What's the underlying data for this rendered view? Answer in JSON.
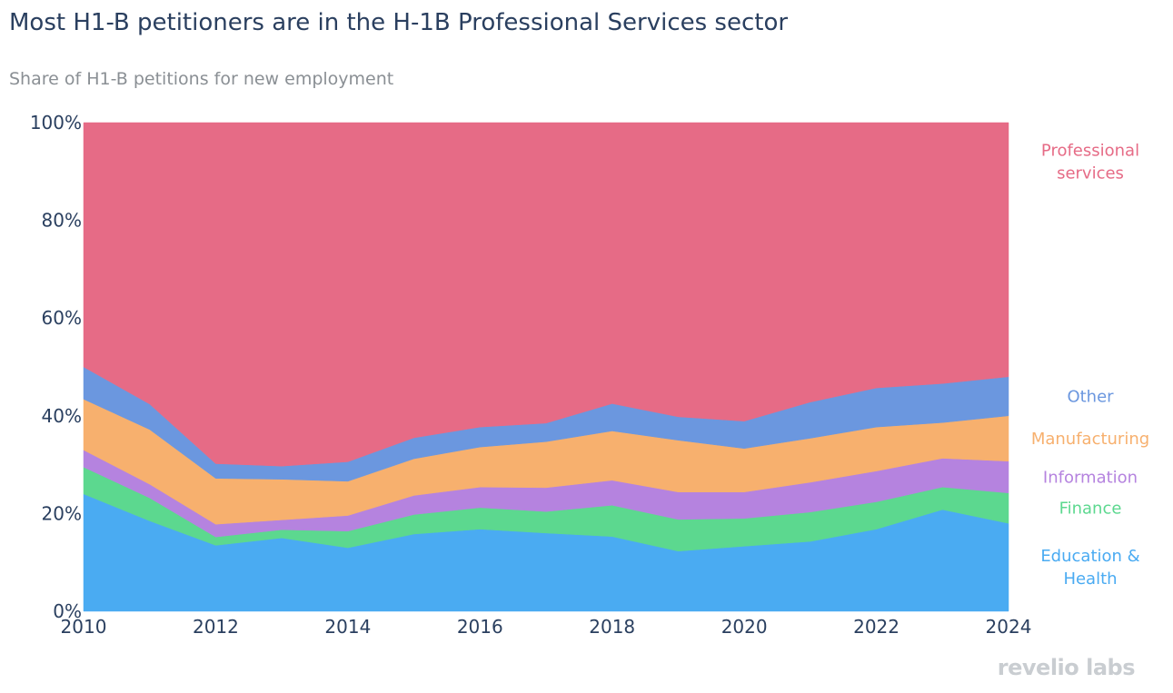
{
  "header": {
    "title": "Most H1-B petitioners are in the H-1B Professional Services sector",
    "subtitle": "Share of H1-B petitions for new employment"
  },
  "logo": {
    "text": "revelio labs"
  },
  "chart_data": {
    "type": "area",
    "stacked": true,
    "normalized": true,
    "x": [
      2010,
      2011,
      2012,
      2013,
      2014,
      2015,
      2016,
      2017,
      2018,
      2019,
      2020,
      2021,
      2022,
      2023,
      2024
    ],
    "xticks": [
      2010,
      2012,
      2014,
      2016,
      2018,
      2020,
      2022,
      2024
    ],
    "xlim": [
      2010,
      2024
    ],
    "ylim": [
      0,
      100
    ],
    "yticks": [
      0,
      20,
      40,
      60,
      80,
      100
    ],
    "ytick_labels": [
      "0%",
      "20%",
      "40%",
      "60%",
      "80%",
      "100%"
    ],
    "grid": false,
    "legend": "labels at right end of series",
    "series": [
      {
        "name": "Education & Health",
        "label_lines": [
          "Education &",
          "Health"
        ],
        "color": "#4aabf2",
        "values": [
          24,
          18.5,
          13.5,
          15,
          13,
          15.8,
          16.8,
          16,
          15.3,
          12.3,
          13.3,
          14.3,
          16.8,
          20.8,
          18
        ]
      },
      {
        "name": "Finance",
        "label_lines": [
          "Finance"
        ],
        "color": "#5cd88f",
        "values": [
          5.5,
          4.7,
          1.7,
          1.7,
          3.4,
          4,
          4.4,
          4.4,
          6.4,
          6.5,
          5.7,
          6,
          5.6,
          4.6,
          6.2
        ]
      },
      {
        "name": "Information",
        "label_lines": [
          "Information"
        ],
        "color": "#b583df",
        "values": [
          3.5,
          2.8,
          2.6,
          2,
          3.2,
          3.9,
          4.2,
          4.9,
          5.1,
          5.6,
          5.4,
          6.1,
          6.3,
          5.9,
          6.5
        ]
      },
      {
        "name": "Manufacturing",
        "label_lines": [
          "Manufacturing"
        ],
        "color": "#f7b06e",
        "values": [
          10.4,
          11.2,
          9.4,
          8.3,
          7,
          7.5,
          8.2,
          9.4,
          10.1,
          10.6,
          8.9,
          9,
          9,
          7.3,
          9.3
        ]
      },
      {
        "name": "Other",
        "label_lines": [
          "Other"
        ],
        "color": "#6b97df",
        "values": [
          6.6,
          5.2,
          3,
          2.7,
          4,
          4.3,
          4.1,
          3.8,
          5.6,
          4.8,
          5.6,
          7.4,
          8,
          8,
          8
        ]
      },
      {
        "name": "Professional services",
        "label_lines": [
          "Professional",
          "services"
        ],
        "color": "#e66b86",
        "values": [
          50,
          57.6,
          69.8,
          70.3,
          69.4,
          64.5,
          62.3,
          61.5,
          57.5,
          60.2,
          61.1,
          57.2,
          54.3,
          53.4,
          52
        ]
      }
    ]
  }
}
